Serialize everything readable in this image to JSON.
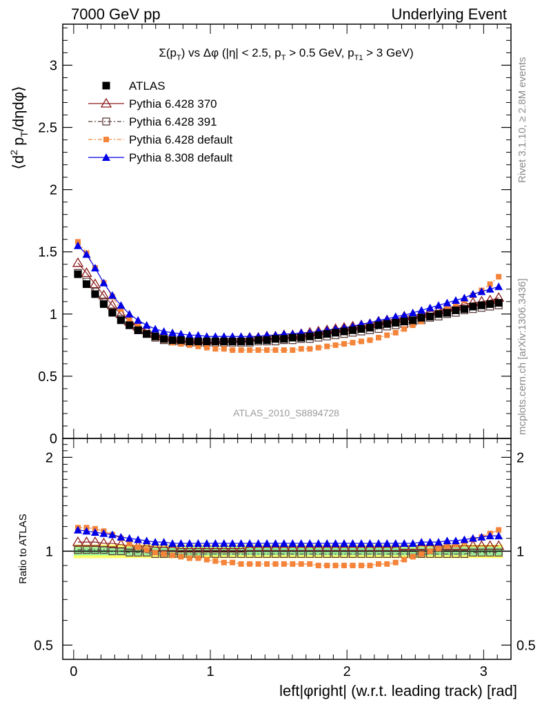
{
  "header": {
    "left": "7000 GeV pp",
    "right": "Underlying Event"
  },
  "side_labels": {
    "rivet": "Rivet 3.1.10, ≥ 2.8M events",
    "mcplots": "mcplots.cern.ch [arXiv:1306.3436]"
  },
  "chart_data": [
    {
      "type": "scatter",
      "panel": "main",
      "title": "Σ(p_T) vs Δφ (|η| < 2.5, p_T > 0.5 GeV, p_T1 > 3 GeV)",
      "title_parts": {
        "a": "Σ(p",
        "a_sub": "T",
        "b": ") vs Δφ (|η| < 2.5, p",
        "b_sub": "T",
        "c": " > 0.5 GeV, p",
        "c_sub": "T1",
        "d": " > 3 GeV)"
      },
      "ylabel": "⟨d² p_T/dηdφ⟩",
      "ylabel_parts": {
        "pre": "⟨d",
        "sup": "2",
        "mid": " p",
        "sub": "T",
        "post": "/dηdφ⟩"
      },
      "watermark": "ATLAS_2010_S8894728",
      "xlim": [
        -0.08,
        3.2
      ],
      "ylim": [
        0,
        3.33
      ],
      "y_ticks": [
        0,
        0.5,
        1,
        1.5,
        2,
        2.5,
        3
      ],
      "y_tick_labels": [
        "0",
        "0.5",
        "1",
        "1.5",
        "2",
        "2.5",
        "3"
      ],
      "legend_position": "top-left",
      "x": [
        0.031,
        0.094,
        0.157,
        0.22,
        0.283,
        0.346,
        0.408,
        0.471,
        0.534,
        0.597,
        0.66,
        0.723,
        0.785,
        0.848,
        0.911,
        0.974,
        1.037,
        1.1,
        1.162,
        1.225,
        1.288,
        1.351,
        1.414,
        1.477,
        1.539,
        1.602,
        1.665,
        1.728,
        1.791,
        1.854,
        1.916,
        1.979,
        2.042,
        2.105,
        2.168,
        2.231,
        2.293,
        2.356,
        2.419,
        2.482,
        2.545,
        2.608,
        2.67,
        2.733,
        2.796,
        2.859,
        2.922,
        2.985,
        3.047,
        3.11
      ],
      "series": [
        {
          "name": "ATLAS",
          "marker": "square-filled",
          "color": "#000000",
          "values": [
            1.32,
            1.24,
            1.16,
            1.08,
            1.01,
            0.95,
            0.91,
            0.87,
            0.84,
            0.82,
            0.8,
            0.79,
            0.79,
            0.78,
            0.78,
            0.78,
            0.78,
            0.78,
            0.78,
            0.78,
            0.78,
            0.79,
            0.79,
            0.8,
            0.8,
            0.81,
            0.81,
            0.82,
            0.83,
            0.84,
            0.85,
            0.86,
            0.87,
            0.88,
            0.89,
            0.91,
            0.92,
            0.93,
            0.94,
            0.95,
            0.97,
            0.98,
            1.0,
            1.01,
            1.03,
            1.04,
            1.06,
            1.07,
            1.08,
            1.09
          ]
        },
        {
          "name": "Pythia 6.428 370",
          "marker": "triangle-open",
          "color": "#8b1a1a",
          "values": [
            1.41,
            1.33,
            1.24,
            1.15,
            1.07,
            1.0,
            0.94,
            0.9,
            0.87,
            0.84,
            0.82,
            0.81,
            0.8,
            0.8,
            0.79,
            0.79,
            0.79,
            0.8,
            0.8,
            0.8,
            0.81,
            0.81,
            0.82,
            0.82,
            0.83,
            0.83,
            0.84,
            0.85,
            0.86,
            0.87,
            0.88,
            0.89,
            0.9,
            0.91,
            0.92,
            0.94,
            0.95,
            0.96,
            0.98,
            0.99,
            1.0,
            1.02,
            1.03,
            1.05,
            1.06,
            1.08,
            1.09,
            1.1,
            1.11,
            1.13
          ]
        },
        {
          "name": "Pythia 6.428 391",
          "marker": "square-open",
          "color": "#5a3a3a",
          "values": [
            1.33,
            1.26,
            1.18,
            1.1,
            1.02,
            0.96,
            0.91,
            0.87,
            0.84,
            0.81,
            0.79,
            0.78,
            0.78,
            0.77,
            0.77,
            0.77,
            0.77,
            0.77,
            0.77,
            0.77,
            0.77,
            0.78,
            0.78,
            0.78,
            0.79,
            0.79,
            0.8,
            0.8,
            0.81,
            0.82,
            0.83,
            0.84,
            0.85,
            0.86,
            0.87,
            0.88,
            0.9,
            0.91,
            0.92,
            0.94,
            0.95,
            0.97,
            0.98,
            1.0,
            1.01,
            1.03,
            1.04,
            1.05,
            1.06,
            1.07
          ]
        },
        {
          "name": "Pythia 6.428 default",
          "marker": "square-small-filled",
          "color": "#f4843a",
          "values": [
            1.58,
            1.49,
            1.37,
            1.25,
            1.14,
            1.04,
            0.96,
            0.9,
            0.85,
            0.81,
            0.79,
            0.77,
            0.76,
            0.75,
            0.74,
            0.73,
            0.72,
            0.72,
            0.71,
            0.71,
            0.71,
            0.71,
            0.71,
            0.71,
            0.71,
            0.71,
            0.72,
            0.72,
            0.73,
            0.74,
            0.75,
            0.76,
            0.77,
            0.78,
            0.79,
            0.81,
            0.83,
            0.85,
            0.88,
            0.91,
            0.94,
            0.98,
            1.01,
            1.04,
            1.07,
            1.11,
            1.15,
            1.19,
            1.24,
            1.3
          ]
        },
        {
          "name": "Pythia 8.308 default",
          "marker": "triangle-filled",
          "color": "#0000e6",
          "values": [
            1.55,
            1.48,
            1.37,
            1.25,
            1.15,
            1.07,
            1.0,
            0.95,
            0.91,
            0.88,
            0.86,
            0.85,
            0.84,
            0.83,
            0.83,
            0.82,
            0.82,
            0.82,
            0.82,
            0.82,
            0.82,
            0.82,
            0.83,
            0.83,
            0.84,
            0.84,
            0.85,
            0.85,
            0.86,
            0.87,
            0.88,
            0.89,
            0.9,
            0.92,
            0.93,
            0.95,
            0.96,
            0.98,
            0.99,
            1.01,
            1.03,
            1.05,
            1.07,
            1.09,
            1.11,
            1.13,
            1.16,
            1.18,
            1.2,
            1.22
          ]
        }
      ]
    },
    {
      "type": "scatter",
      "panel": "ratio",
      "xlabel": "left|φright| (w.r.t. leading track) [rad]",
      "ylabel": "Ratio to ATLAS",
      "xlim": [
        -0.08,
        3.2
      ],
      "ylim": [
        0.45,
        2.3
      ],
      "log_y": true,
      "x_ticks": [
        0,
        1,
        2,
        3
      ],
      "x_tick_labels": [
        "0",
        "1",
        "2",
        "3"
      ],
      "y_ticks": [
        0.5,
        1,
        2
      ],
      "y_tick_labels": [
        "0.5",
        "1",
        "2"
      ],
      "reference_band": {
        "stat_color": "#99ee99",
        "total_color": "#ffff66",
        "stat_halfwidth": 0.03,
        "total_halfwidth": 0.05
      },
      "series": [
        {
          "name": "Pythia 6.428 370",
          "values": [
            1.07,
            1.07,
            1.07,
            1.06,
            1.06,
            1.05,
            1.04,
            1.04,
            1.04,
            1.03,
            1.03,
            1.03,
            1.02,
            1.02,
            1.02,
            1.02,
            1.02,
            1.02,
            1.02,
            1.02,
            1.03,
            1.03,
            1.03,
            1.03,
            1.03,
            1.03,
            1.03,
            1.03,
            1.03,
            1.03,
            1.03,
            1.03,
            1.03,
            1.03,
            1.03,
            1.03,
            1.03,
            1.03,
            1.04,
            1.04,
            1.04,
            1.04,
            1.04,
            1.04,
            1.04,
            1.04,
            1.04,
            1.04,
            1.04,
            1.04
          ]
        },
        {
          "name": "Pythia 6.428 391",
          "values": [
            1.01,
            1.01,
            1.01,
            1.01,
            1.0,
            1.0,
            0.99,
            0.99,
            0.99,
            0.98,
            0.98,
            0.98,
            0.98,
            0.98,
            0.98,
            0.98,
            0.98,
            0.98,
            0.98,
            0.98,
            0.98,
            0.98,
            0.98,
            0.98,
            0.98,
            0.98,
            0.98,
            0.98,
            0.98,
            0.98,
            0.98,
            0.98,
            0.98,
            0.98,
            0.98,
            0.98,
            0.98,
            0.98,
            0.98,
            0.98,
            0.98,
            0.98,
            0.98,
            0.98,
            0.98,
            0.98,
            0.99,
            0.99,
            0.99,
            0.99
          ]
        },
        {
          "name": "Pythia 6.428 default",
          "values": [
            1.19,
            1.19,
            1.18,
            1.16,
            1.13,
            1.1,
            1.06,
            1.03,
            1.01,
            0.99,
            0.98,
            0.97,
            0.96,
            0.95,
            0.95,
            0.94,
            0.93,
            0.92,
            0.92,
            0.91,
            0.91,
            0.91,
            0.91,
            0.91,
            0.91,
            0.91,
            0.91,
            0.91,
            0.9,
            0.9,
            0.9,
            0.9,
            0.9,
            0.9,
            0.9,
            0.91,
            0.91,
            0.92,
            0.94,
            0.96,
            0.98,
            1.0,
            1.02,
            1.04,
            1.05,
            1.07,
            1.09,
            1.11,
            1.14,
            1.17
          ]
        },
        {
          "name": "Pythia 8.308 default",
          "values": [
            1.17,
            1.16,
            1.15,
            1.14,
            1.13,
            1.11,
            1.1,
            1.09,
            1.08,
            1.07,
            1.07,
            1.06,
            1.06,
            1.06,
            1.06,
            1.06,
            1.06,
            1.06,
            1.06,
            1.06,
            1.06,
            1.06,
            1.06,
            1.06,
            1.06,
            1.06,
            1.06,
            1.06,
            1.06,
            1.06,
            1.06,
            1.06,
            1.06,
            1.06,
            1.06,
            1.06,
            1.06,
            1.06,
            1.06,
            1.06,
            1.07,
            1.07,
            1.07,
            1.08,
            1.08,
            1.09,
            1.1,
            1.11,
            1.12,
            1.12
          ]
        }
      ]
    }
  ]
}
